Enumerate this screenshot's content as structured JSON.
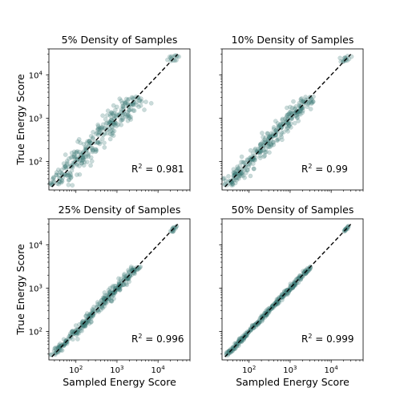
{
  "chart_data": {
    "type": "scatter",
    "xlabel": "Sampled Energy Score",
    "ylabel": "True Energy Score",
    "xscale": "log",
    "yscale": "log",
    "xlim": [
      22,
      60000
    ],
    "ylim": [
      22,
      40000
    ],
    "tick_values": [
      100,
      1000,
      10000
    ],
    "tick_labels": [
      {
        "base": "10",
        "exp": "2"
      },
      {
        "base": "10",
        "exp": "3"
      },
      {
        "base": "10",
        "exp": "4"
      }
    ],
    "reference_line": "y = x (dashed)",
    "grid": false,
    "point_color": "#3f7f7a",
    "panels": [
      {
        "title": "5% Density of Samples",
        "r2_prefix": "R",
        "r2_sup": "2",
        "r2_value": " = 0.981",
        "spread": 0.17
      },
      {
        "title": "10% Density of Samples",
        "r2_prefix": "R",
        "r2_sup": "2",
        "r2_value": " = 0.99",
        "spread": 0.12
      },
      {
        "title": "25% Density of Samples",
        "r2_prefix": "R",
        "r2_sup": "2",
        "r2_value": " = 0.996",
        "spread": 0.07
      },
      {
        "title": "50% Density of Samples",
        "r2_prefix": "R",
        "r2_sup": "2",
        "r2_value": " = 0.999",
        "spread": 0.035
      }
    ]
  }
}
